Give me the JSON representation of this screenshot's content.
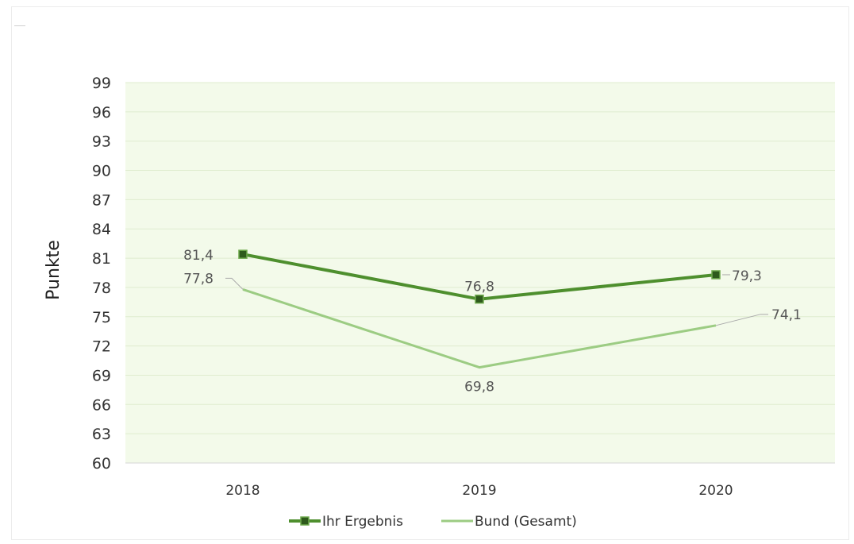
{
  "chart_data": {
    "type": "line",
    "title": "",
    "xlabel": "",
    "ylabel": "Punkte",
    "x": [
      "2018",
      "2019",
      "2020"
    ],
    "ylim": [
      60,
      99
    ],
    "yticks": [
      60,
      63,
      66,
      69,
      72,
      75,
      78,
      81,
      84,
      87,
      90,
      93,
      96,
      99
    ],
    "grid": true,
    "legend_position": "bottom",
    "series": [
      {
        "name": "Ihr Ergebnis",
        "values": [
          81.4,
          76.8,
          79.3
        ],
        "labels": [
          "81,4",
          "76,8",
          "79,3"
        ],
        "color": "#4e8f2e",
        "marker": "square",
        "marker_color": "#2e5a1c"
      },
      {
        "name": "Bund (Gesamt)",
        "values": [
          77.8,
          69.8,
          74.1
        ],
        "labels": [
          "77,8",
          "69,8",
          "74,1"
        ],
        "color": "#9ccc83",
        "marker": "none"
      }
    ],
    "plot_background": "#f3faea",
    "grid_color": "#dfeccf"
  }
}
